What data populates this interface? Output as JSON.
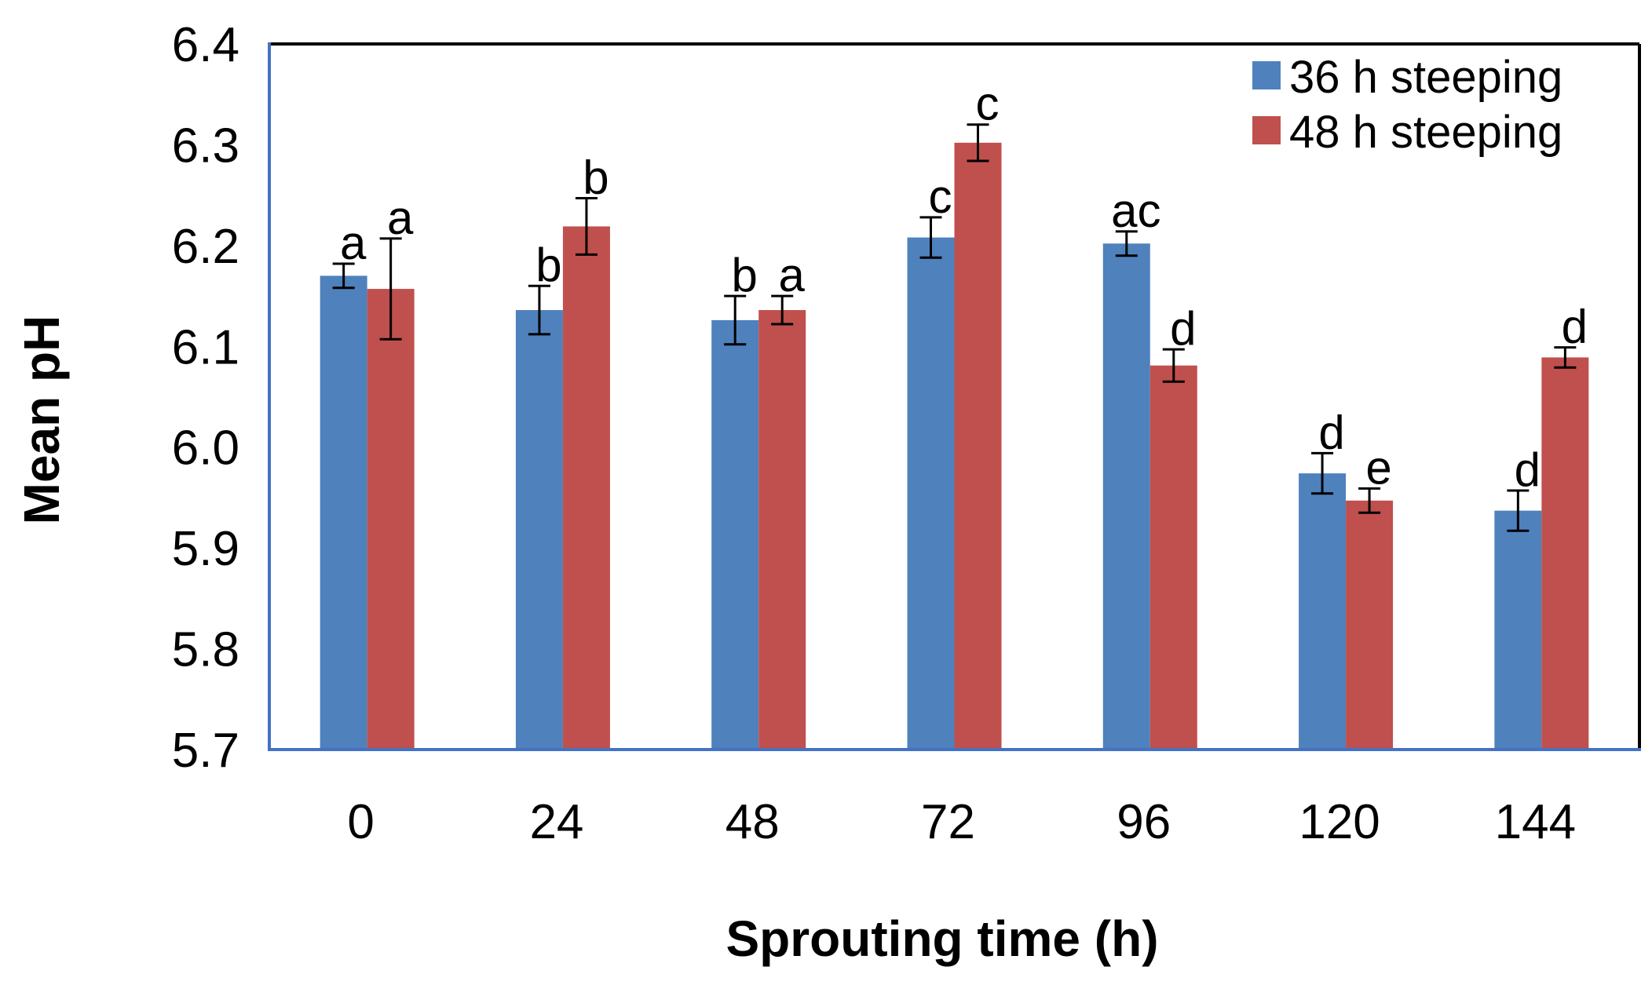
{
  "chart_data": {
    "type": "bar",
    "title": "",
    "xlabel": "Sprouting time (h)",
    "ylabel": "Mean pH",
    "ylim": [
      5.7,
      6.4
    ],
    "yticks": [
      "5.7",
      "5.8",
      "5.9",
      "6.0",
      "6.1",
      "6.2",
      "6.3",
      "6.4"
    ],
    "categories": [
      "0",
      "24",
      "48",
      "72",
      "96",
      "120",
      "144"
    ],
    "legend_position": "top-right",
    "grid": false,
    "series": [
      {
        "name": "36 h steeping",
        "color": "#4F81BD",
        "values": [
          6.17,
          6.136,
          6.126,
          6.208,
          6.202,
          5.974,
          5.937
        ],
        "errors": [
          0.012,
          0.024,
          0.024,
          0.02,
          0.012,
          0.02,
          0.02
        ],
        "labels": [
          "a",
          "b",
          "b",
          "c",
          "ac",
          "d",
          "d"
        ]
      },
      {
        "name": "48 h steeping",
        "color": "#C0504D",
        "values": [
          6.157,
          6.219,
          6.136,
          6.302,
          6.081,
          5.947,
          6.089
        ],
        "errors": [
          0.05,
          0.028,
          0.014,
          0.018,
          0.016,
          0.012,
          0.01
        ],
        "labels": [
          "a",
          "b",
          "a",
          "c",
          "d",
          "e",
          "d"
        ]
      }
    ]
  },
  "colors": {
    "axis_left_bottom": "#4472C4",
    "frame": "#000000"
  }
}
